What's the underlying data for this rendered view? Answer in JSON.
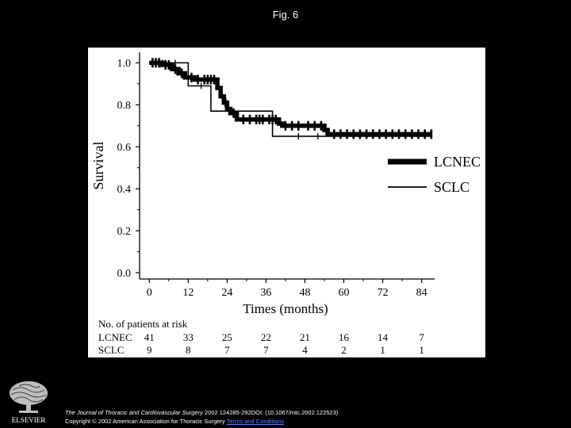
{
  "figure_title": "Fig. 6",
  "chart_data": {
    "type": "line",
    "subtype": "kaplan-meier",
    "xlabel": "Times (months)",
    "ylabel": "Survival",
    "xlim": [
      -3,
      88
    ],
    "ylim": [
      -0.03,
      1.05
    ],
    "xticks": [
      0,
      12,
      24,
      36,
      48,
      60,
      72,
      84
    ],
    "yticks": [
      "0.0",
      "0.2",
      "0.4",
      "0.6",
      "0.8",
      "1.0"
    ],
    "yticks_values": [
      0.0,
      0.2,
      0.4,
      0.6,
      0.8,
      1.0
    ],
    "legend_position": "right",
    "series": [
      {
        "name": "LCNEC",
        "style": "thick",
        "color": "#000000",
        "steps": [
          [
            0,
            1.0
          ],
          [
            4,
            0.99
          ],
          [
            7,
            0.97
          ],
          [
            9,
            0.95
          ],
          [
            11,
            0.93
          ],
          [
            14,
            0.92
          ],
          [
            21,
            0.88
          ],
          [
            22,
            0.84
          ],
          [
            23,
            0.81
          ],
          [
            24,
            0.78
          ],
          [
            25,
            0.76
          ],
          [
            27,
            0.73
          ],
          [
            40,
            0.71
          ],
          [
            41,
            0.7
          ],
          [
            54,
            0.68
          ],
          [
            55,
            0.66
          ],
          [
            87,
            0.66
          ]
        ],
        "censor_x": [
          1,
          2,
          3,
          5,
          6,
          8,
          10,
          13,
          15,
          17,
          18,
          19,
          20,
          23.5,
          26,
          29,
          31,
          33,
          34,
          35,
          37,
          38,
          39,
          42,
          44,
          46,
          49,
          51,
          53,
          57,
          59,
          61,
          63,
          65,
          67,
          69,
          71,
          73,
          75,
          77,
          79,
          81,
          83,
          85,
          87
        ]
      },
      {
        "name": "SCLC",
        "style": "thin",
        "color": "#000000",
        "steps": [
          [
            0,
            1.0
          ],
          [
            12,
            0.89
          ],
          [
            19,
            0.77
          ],
          [
            27,
            0.77
          ],
          [
            38,
            0.65
          ],
          [
            87,
            0.65
          ]
        ],
        "censor_x": [
          4,
          8,
          16,
          46,
          52
        ]
      }
    ],
    "risk_table": {
      "title": "No. of patients at risk",
      "times": [
        0,
        12,
        24,
        36,
        48,
        60,
        72,
        84
      ],
      "rows": [
        {
          "label": "LCNEC",
          "values": [
            "41",
            "33",
            "25",
            "22",
            "21",
            "16",
            "14",
            "7"
          ]
        },
        {
          "label": "SCLC",
          "values": [
            "9",
            "8",
            "7",
            "7",
            "4",
            "2",
            "1",
            "1"
          ]
        }
      ]
    }
  },
  "footer": {
    "publisher": "ELSEVIER",
    "journal": "The Journal of Thoracic and Cardiovascular Surgery",
    "ref": " 2002 124285-292DOI: (10.1067/mtc.2002.122523)",
    "copyright": "Copyright © 2002 American Association for Thoracic Surgery ",
    "link": "Terms and Conditions"
  }
}
